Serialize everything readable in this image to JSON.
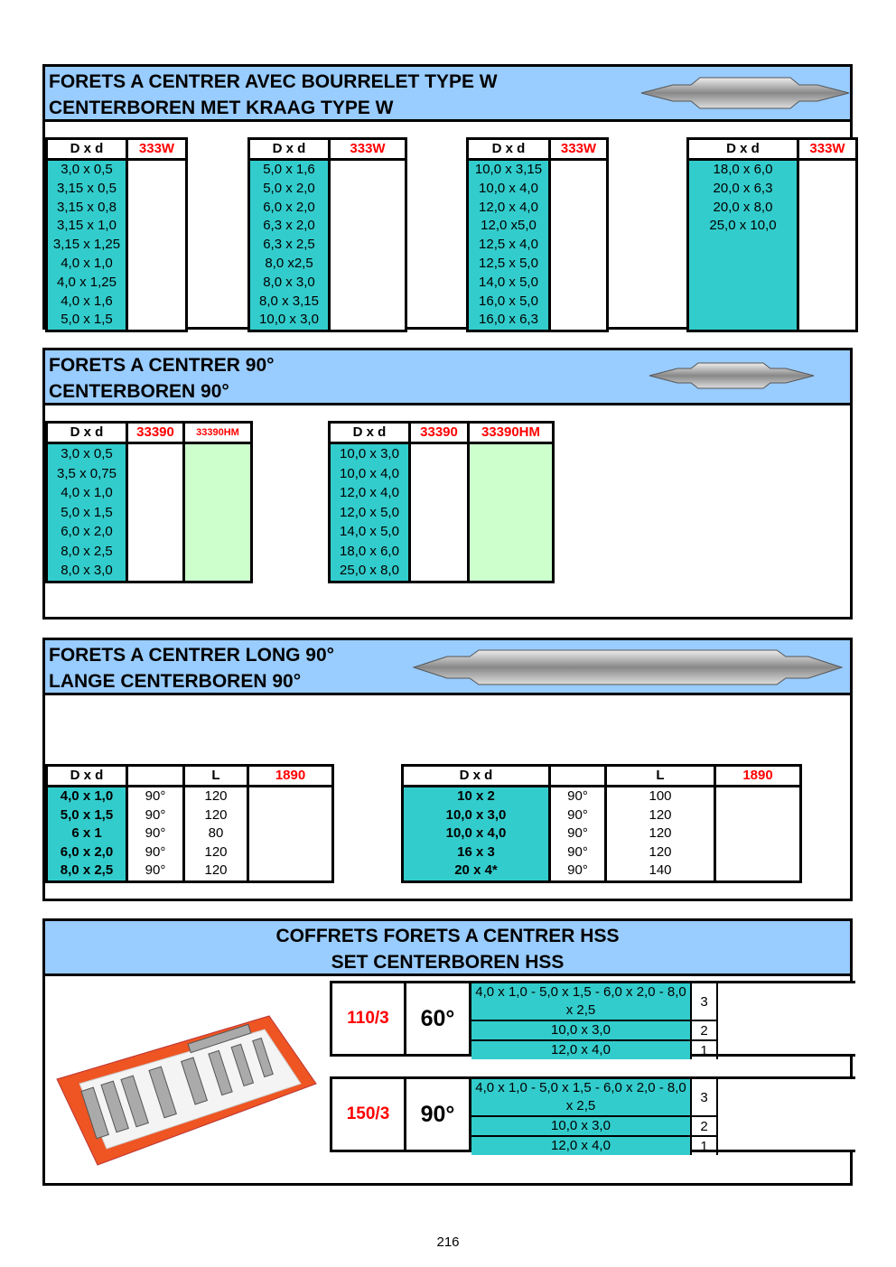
{
  "sections": [
    {
      "title1": "FORETS A CENTRER AVEC BOURRELET TYPE W",
      "title2": "CENTERBOREN MET KRAAG TYPE W",
      "tables": [
        {
          "headers": [
            "D x d",
            "333W"
          ],
          "rows": [
            [
              "3,0 x 0,5",
              ""
            ],
            [
              "3,15 x 0,5",
              ""
            ],
            [
              "3,15 x 0,8",
              ""
            ],
            [
              "3,15 x 1,0",
              ""
            ],
            [
              "3,15 x 1,25",
              ""
            ],
            [
              "4,0 x 1,0",
              ""
            ],
            [
              "4,0 x 1,25",
              ""
            ],
            [
              "4,0 x 1,6",
              ""
            ],
            [
              "5,0 x 1,5",
              ""
            ]
          ]
        },
        {
          "headers": [
            "D x d",
            "333W"
          ],
          "rows": [
            [
              "5,0 x 1,6",
              ""
            ],
            [
              "5,0 x 2,0",
              ""
            ],
            [
              "6,0 x 2,0",
              ""
            ],
            [
              "6,3 x 2,0",
              ""
            ],
            [
              "6,3 x 2,5",
              ""
            ],
            [
              "8,0  x2,5",
              ""
            ],
            [
              "8,0 x 3,0",
              ""
            ],
            [
              "8,0 x 3,15",
              ""
            ],
            [
              "10,0 x 3,0",
              ""
            ]
          ]
        },
        {
          "headers": [
            "D x d",
            "333W"
          ],
          "rows": [
            [
              "10,0 x 3,15",
              ""
            ],
            [
              "10,0 x 4,0",
              ""
            ],
            [
              "12,0 x 4,0",
              ""
            ],
            [
              "12,0  x5,0",
              ""
            ],
            [
              "12,5 x 4,0",
              ""
            ],
            [
              "12,5 x 5,0",
              ""
            ],
            [
              "14,0 x 5,0",
              ""
            ],
            [
              "16,0 x 5,0",
              ""
            ],
            [
              "16,0 x 6,3",
              ""
            ]
          ]
        },
        {
          "headers": [
            "D x d",
            "333W"
          ],
          "rows": [
            [
              "18,0 x 6,0",
              ""
            ],
            [
              "20,0 x 6,3",
              ""
            ],
            [
              "20,0 x 8,0",
              ""
            ],
            [
              "25,0 x 10,0",
              ""
            ],
            [
              "",
              ""
            ],
            [
              "",
              ""
            ],
            [
              "",
              ""
            ],
            [
              "",
              ""
            ],
            [
              "",
              ""
            ]
          ]
        }
      ]
    },
    {
      "title1": "FORETS A CENTRER 90°",
      "title2": "CENTERBOREN 90°",
      "tables": [
        {
          "headers": [
            "D x d",
            "33390",
            "33390HM"
          ],
          "rows": [
            [
              "3,0 x 0,5",
              "",
              ""
            ],
            [
              "3,5 x 0,75",
              "",
              ""
            ],
            [
              "4,0 x 1,0",
              "",
              ""
            ],
            [
              "5,0 x 1,5",
              "",
              ""
            ],
            [
              "6,0 x 2,0",
              "",
              ""
            ],
            [
              "8,0 x 2,5",
              "",
              ""
            ],
            [
              "8,0 x 3,0",
              "",
              ""
            ]
          ]
        },
        {
          "headers": [
            "D x d",
            "33390",
            "33390HM"
          ],
          "rows": [
            [
              "10,0 x 3,0",
              "",
              ""
            ],
            [
              "10,0 x 4,0",
              "",
              ""
            ],
            [
              "12,0 x 4,0",
              "",
              ""
            ],
            [
              "12,0 x 5,0",
              "",
              ""
            ],
            [
              "14,0 x 5,0",
              "",
              ""
            ],
            [
              "18,0 x 6,0",
              "",
              ""
            ],
            [
              "25,0 x 8,0",
              "",
              ""
            ]
          ]
        }
      ]
    },
    {
      "title1": "FORETS A CENTRER LONG 90°",
      "title2": "LANGE CENTERBOREN 90°",
      "tables": [
        {
          "headers": [
            "D x d",
            "",
            "L",
            "1890"
          ],
          "rows": [
            [
              "4,0 x 1,0",
              "90°",
              "120",
              ""
            ],
            [
              "5,0 x 1,5",
              "90°",
              "120",
              ""
            ],
            [
              "6 x 1",
              "90°",
              "80",
              ""
            ],
            [
              "6,0 x 2,0",
              "90°",
              "120",
              ""
            ],
            [
              "8,0 x 2,5",
              "90°",
              "120",
              ""
            ]
          ]
        },
        {
          "headers": [
            "D x d",
            "",
            "L",
            "1890"
          ],
          "rows": [
            [
              "10 x 2",
              "90°",
              "100",
              ""
            ],
            [
              "10,0 x 3,0",
              "90°",
              "120",
              ""
            ],
            [
              "10,0 x 4,0",
              "90°",
              "120",
              ""
            ],
            [
              "16 x 3",
              "90°",
              "120",
              ""
            ],
            [
              "20 x 4*",
              "90°",
              "140",
              ""
            ]
          ]
        }
      ]
    },
    {
      "title1": "COFFRETS FORETS A CENTRER HSS",
      "title2": "SET CENTERBOREN HSS",
      "sets": [
        {
          "code": "110/3",
          "angle": "60°",
          "lines": [
            {
              "sizes": "4,0 x 1,0 - 5,0 x 1,5 - 6,0 x 2,0 - 8,0 x 2,5",
              "qty": "3"
            },
            {
              "sizes": "10,0 x 3,0",
              "qty": "2"
            },
            {
              "sizes": "12,0 x 4,0",
              "qty": "1"
            }
          ]
        },
        {
          "code": "150/3",
          "angle": "90°",
          "lines": [
            {
              "sizes": "4,0 x 1,0 - 5,0 x 1,5 - 6,0 x 2,0 - 8,0 x 2,5",
              "qty": "3"
            },
            {
              "sizes": "10,0 x 3,0",
              "qty": "2"
            },
            {
              "sizes": "12,0 x 4,0",
              "qty": "1"
            }
          ]
        }
      ]
    }
  ],
  "page_number": "216",
  "colors": {
    "header_bg": "#99ccff",
    "size_cell": "#33cccc",
    "hm_cell": "#ccffcc",
    "code_text": "#ff0000"
  }
}
